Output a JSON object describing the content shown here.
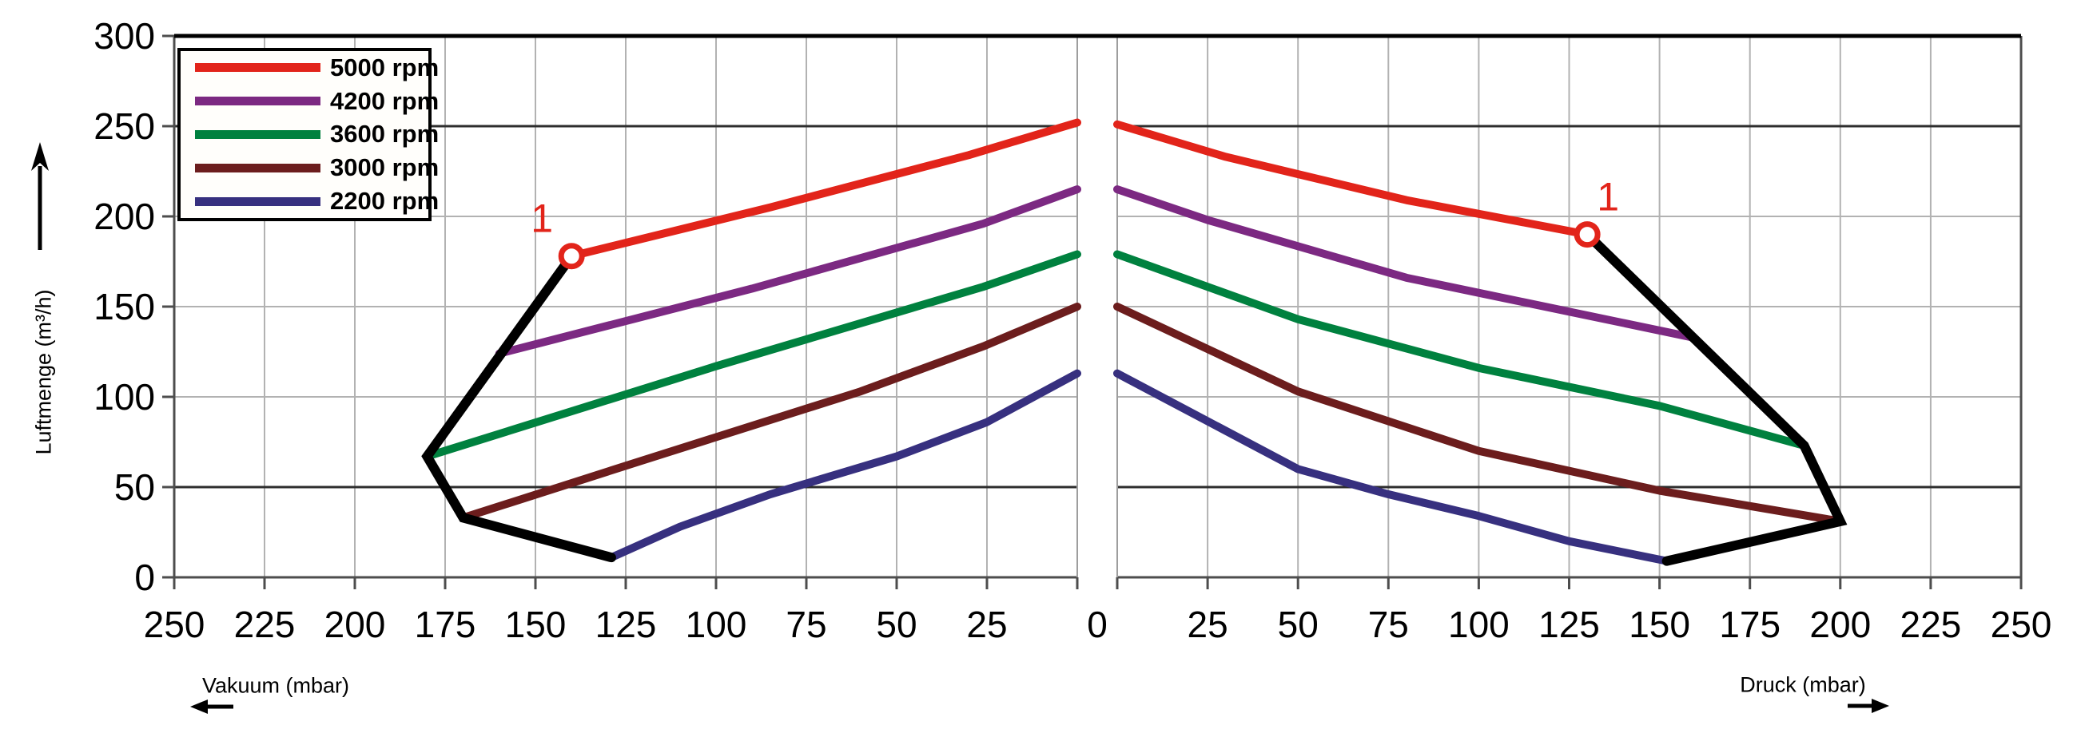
{
  "figure": {
    "background": "#ffffff"
  },
  "axes": {
    "y": {
      "label": "Luftmenge (m³/h)",
      "min": 0,
      "max": 300,
      "ticks": [
        0,
        50,
        100,
        150,
        200,
        250,
        300
      ],
      "dark_gridlines": [
        50,
        250
      ],
      "light_gridlines": [
        100,
        150,
        200
      ]
    },
    "x_left": {
      "label": "Vakuum (mbar)",
      "min": 0,
      "max": 250,
      "reversed": true,
      "ticks": [
        0,
        25,
        50,
        75,
        100,
        125,
        150,
        175,
        200,
        225,
        250
      ]
    },
    "x_right": {
      "label": "Druck (mbar)",
      "min": 0,
      "max": 250,
      "reversed": false,
      "ticks": [
        0,
        25,
        50,
        75,
        100,
        125,
        150,
        175,
        200,
        225,
        250
      ]
    },
    "shared_zero_label": "0"
  },
  "legend": {
    "entries": [
      {
        "label": "5000 rpm",
        "color": "#e2241a"
      },
      {
        "label": "4200 rpm",
        "color": "#7c2982"
      },
      {
        "label": "3600 rpm",
        "color": "#00813f"
      },
      {
        "label": "3000 rpm",
        "color": "#6c1d1d"
      },
      {
        "label": "2200 rpm",
        "color": "#37307f"
      }
    ]
  },
  "colors": {
    "grid_light": "#b2b2b2",
    "grid_dark": "#2e2e2e",
    "axis": "#4d4d4d",
    "border_top": "#000000",
    "inner_edge": "#9e9e9e",
    "envelope": "#000000",
    "annotation": "#e2241a",
    "text": "#000000"
  },
  "chart_data": {
    "type": "line",
    "ylabel": "Luftmenge (m³/h)",
    "ylim": [
      0,
      300
    ],
    "grid": true,
    "legend_position": "top-left",
    "panels": [
      {
        "name": "vakuum",
        "xlabel": "Vakuum (mbar)",
        "xlim": [
          0,
          250
        ],
        "x_reversed": true,
        "series": [
          {
            "name": "5000 rpm",
            "color": "#e2241a",
            "points": [
              [
                0,
                252
              ],
              [
                30,
                234
              ],
              [
                85,
                205
              ],
              [
                140,
                178
              ]
            ]
          },
          {
            "name": "4200 rpm",
            "color": "#7c2982",
            "points": [
              [
                0,
                215
              ],
              [
                26,
                196
              ],
              [
                90,
                160
              ],
              [
                160,
                124
              ]
            ]
          },
          {
            "name": "3600 rpm",
            "color": "#00813f",
            "points": [
              [
                0,
                179
              ],
              [
                26,
                161
              ],
              [
                100,
                117
              ],
              [
                180,
                67
              ]
            ]
          },
          {
            "name": "3000 rpm",
            "color": "#6c1d1d",
            "points": [
              [
                0,
                150
              ],
              [
                26,
                128
              ],
              [
                60,
                103
              ],
              [
                120,
                65
              ],
              [
                170,
                33
              ]
            ]
          },
          {
            "name": "2200 rpm",
            "color": "#37307f",
            "points": [
              [
                0,
                113
              ],
              [
                25,
                86
              ],
              [
                50,
                67
              ],
              [
                85,
                46
              ],
              [
                110,
                28
              ],
              [
                129,
                11
              ]
            ]
          }
        ],
        "envelope": {
          "color": "#000000",
          "points": [
            [
              140,
              178
            ],
            [
              180,
              67
            ],
            [
              170,
              33
            ],
            [
              129,
              11
            ]
          ]
        },
        "marker": {
          "x": 140,
          "y": 178,
          "label": "1"
        }
      },
      {
        "name": "druck",
        "xlabel": "Druck (mbar)",
        "xlim": [
          0,
          250
        ],
        "x_reversed": false,
        "series": [
          {
            "name": "5000 rpm",
            "color": "#e2241a",
            "points": [
              [
                0,
                251
              ],
              [
                30,
                233
              ],
              [
                80,
                209
              ],
              [
                130,
                190
              ]
            ]
          },
          {
            "name": "4200 rpm",
            "color": "#7c2982",
            "points": [
              [
                0,
                215
              ],
              [
                25,
                198
              ],
              [
                80,
                166
              ],
              [
                159,
                133
              ]
            ]
          },
          {
            "name": "3600 rpm",
            "color": "#00813f",
            "points": [
              [
                0,
                179
              ],
              [
                50,
                143
              ],
              [
                100,
                116
              ],
              [
                150,
                95
              ],
              [
                190,
                73
              ]
            ]
          },
          {
            "name": "3000 rpm",
            "color": "#6c1d1d",
            "points": [
              [
                0,
                150
              ],
              [
                50,
                103
              ],
              [
                100,
                70
              ],
              [
                150,
                48
              ],
              [
                200,
                31
              ]
            ]
          },
          {
            "name": "2200 rpm",
            "color": "#37307f",
            "points": [
              [
                0,
                113
              ],
              [
                50,
                60
              ],
              [
                75,
                46
              ],
              [
                100,
                34
              ],
              [
                125,
                20
              ],
              [
                152,
                9
              ]
            ]
          }
        ],
        "envelope": {
          "color": "#000000",
          "points": [
            [
              130,
              190
            ],
            [
              190,
              73
            ],
            [
              200,
              31
            ],
            [
              152,
              9
            ]
          ]
        },
        "marker": {
          "x": 130,
          "y": 190,
          "label": "1"
        }
      }
    ]
  }
}
